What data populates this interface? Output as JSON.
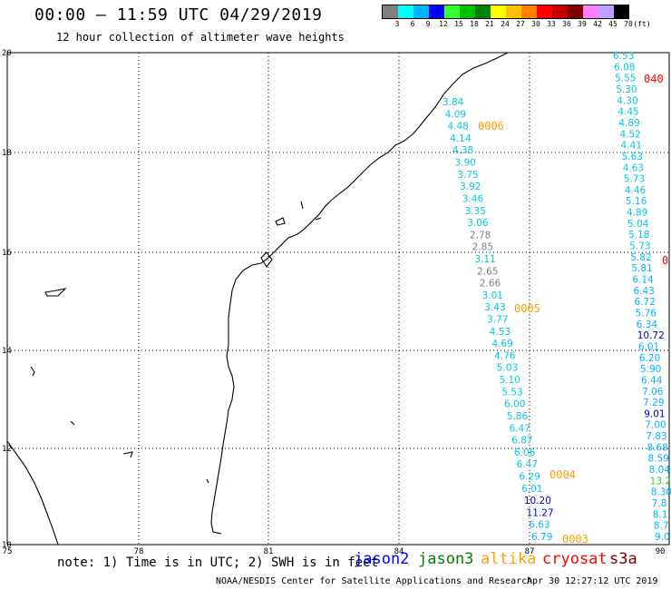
{
  "header": {
    "title": "00:00 – 11:59 UTC 04/29/2019",
    "subtitle": "12 hour collection of altimeter wave heights"
  },
  "scale": {
    "unit": "(ft)",
    "labels": [
      "3",
      "6",
      "9",
      "12",
      "15",
      "18",
      "21",
      "24",
      "27",
      "30",
      "33",
      "36",
      "39",
      "42",
      "45",
      "70"
    ],
    "colors": [
      "#808080",
      "#00ffff",
      "#00b4ff",
      "#0000ff",
      "#32ff32",
      "#00c000",
      "#008000",
      "#ffff00",
      "#ffc000",
      "#ff8000",
      "#ff0000",
      "#c80000",
      "#800000",
      "#ff80ff",
      "#c0a0ff",
      "#000000"
    ]
  },
  "axes": {
    "lon_labels": [
      "75",
      "78",
      "81",
      "84",
      "87",
      "90"
    ],
    "lat_labels": [
      "20",
      "18",
      "16",
      "14",
      "12",
      "10"
    ]
  },
  "tracks": {
    "track1": {
      "values": [
        "3.84",
        "4.09",
        "4.48",
        "4.14",
        "4.38",
        "3.90",
        "3.75",
        "3.92",
        "3.46",
        "3.35",
        "3.06",
        "2.78",
        "2.85",
        "3.11",
        "2.65",
        "2.66",
        "3.01",
        "3.43",
        "3.77",
        "4.53",
        "4.69",
        "4.76",
        "5.03",
        "5.10",
        "5.53",
        "6.00",
        "5.86",
        "6.47",
        "6.87",
        "6.06",
        "6.47",
        "6.29",
        "6.01",
        "10.20",
        "11.27",
        "6.63",
        "6.79"
      ],
      "colors": [
        "#00c8e0",
        "#00c8e0",
        "#00c8e0",
        "#00c8e0",
        "#00c8e0",
        "#00c8e0",
        "#00c8e0",
        "#00c8e0",
        "#00c8e0",
        "#00c8e0",
        "#00c8e0",
        "#808080",
        "#808080",
        "#00c8e0",
        "#808080",
        "#808080",
        "#00c8e0",
        "#00c8e0",
        "#00c8e0",
        "#00c8e0",
        "#00c8e0",
        "#00c8e0",
        "#00c8e0",
        "#00c8e0",
        "#00c8e0",
        "#00c8e0",
        "#00c8e0",
        "#00c8e0",
        "#00c8e0",
        "#00c8e0",
        "#00c8e0",
        "#00c8e0",
        "#00c8e0",
        "#0000c0",
        "#0000c0",
        "#00b4ff",
        "#00b4ff"
      ]
    },
    "track2": {
      "values": [
        "6.53",
        "6.08",
        "5.55",
        "5.30",
        "4.30",
        "4.45",
        "4.89",
        "4.52",
        "4.41",
        "5.63",
        "4.63",
        "5.73",
        "4.46",
        "5.16",
        "4.89",
        "5.04",
        "5.18",
        "5.73",
        "5.82",
        "5.81",
        "6.14",
        "6.43",
        "6.72",
        "5.76",
        "6.34",
        "10.72",
        "6.01",
        "6.20",
        "5.90",
        "6.44",
        "7.06",
        "7.29",
        "9.01",
        "7.00",
        "7.83",
        "8.68",
        "8.59",
        "8.04",
        "13.2",
        "8.30",
        "7.8",
        "8.1",
        "8.7",
        "9.0"
      ],
      "colors": [
        "#00c8e0",
        "#00c8e0",
        "#00c8e0",
        "#00c8e0",
        "#00c8e0",
        "#00c8e0",
        "#00c8e0",
        "#00c8e0",
        "#00c8e0",
        "#00c8e0",
        "#00c8e0",
        "#00c8e0",
        "#00c8e0",
        "#00c8e0",
        "#00c8e0",
        "#00c8e0",
        "#00c8e0",
        "#00c8e0",
        "#00b4ff",
        "#00b4ff",
        "#00b4ff",
        "#00b4ff",
        "#00b4ff",
        "#00b4ff",
        "#00b4ff",
        "#0000c0",
        "#00b4ff",
        "#00b4ff",
        "#00b4ff",
        "#00b4ff",
        "#00b4ff",
        "#00b4ff",
        "#0000c0",
        "#00b4ff",
        "#00b4ff",
        "#00b4ff",
        "#00b4ff",
        "#00b4ff",
        "#40c040",
        "#00b4ff",
        "#00b4ff",
        "#00b4ff",
        "#00b4ff",
        "#00b4ff"
      ]
    },
    "time_tags": [
      {
        "text": "0006",
        "color": "#ffa000"
      },
      {
        "text": "0005",
        "color": "#ffa000"
      },
      {
        "text": "0004",
        "color": "#ffa000"
      },
      {
        "text": "0003",
        "color": "#ffa000"
      },
      {
        "text": "040",
        "color": "#ff0000"
      },
      {
        "text": "0",
        "color": "#ff0000"
      }
    ]
  },
  "footer": {
    "note": "note: 1) Time is in UTC; 2) SWH is in feet",
    "legend": [
      {
        "label": "jason2",
        "color": "#0000ff"
      },
      {
        "label": "jason3",
        "color": "#008000"
      },
      {
        "label": "altika",
        "color": "#ffa000"
      },
      {
        "label": "cryosat",
        "color": "#ff0000"
      },
      {
        "label": "s3a",
        "color": "#800000"
      }
    ],
    "credit": "NOAA/NESDIS Center for Satellite Applications and Research",
    "timestamp": "Apr 30 12:27:12 UTC 2019"
  }
}
